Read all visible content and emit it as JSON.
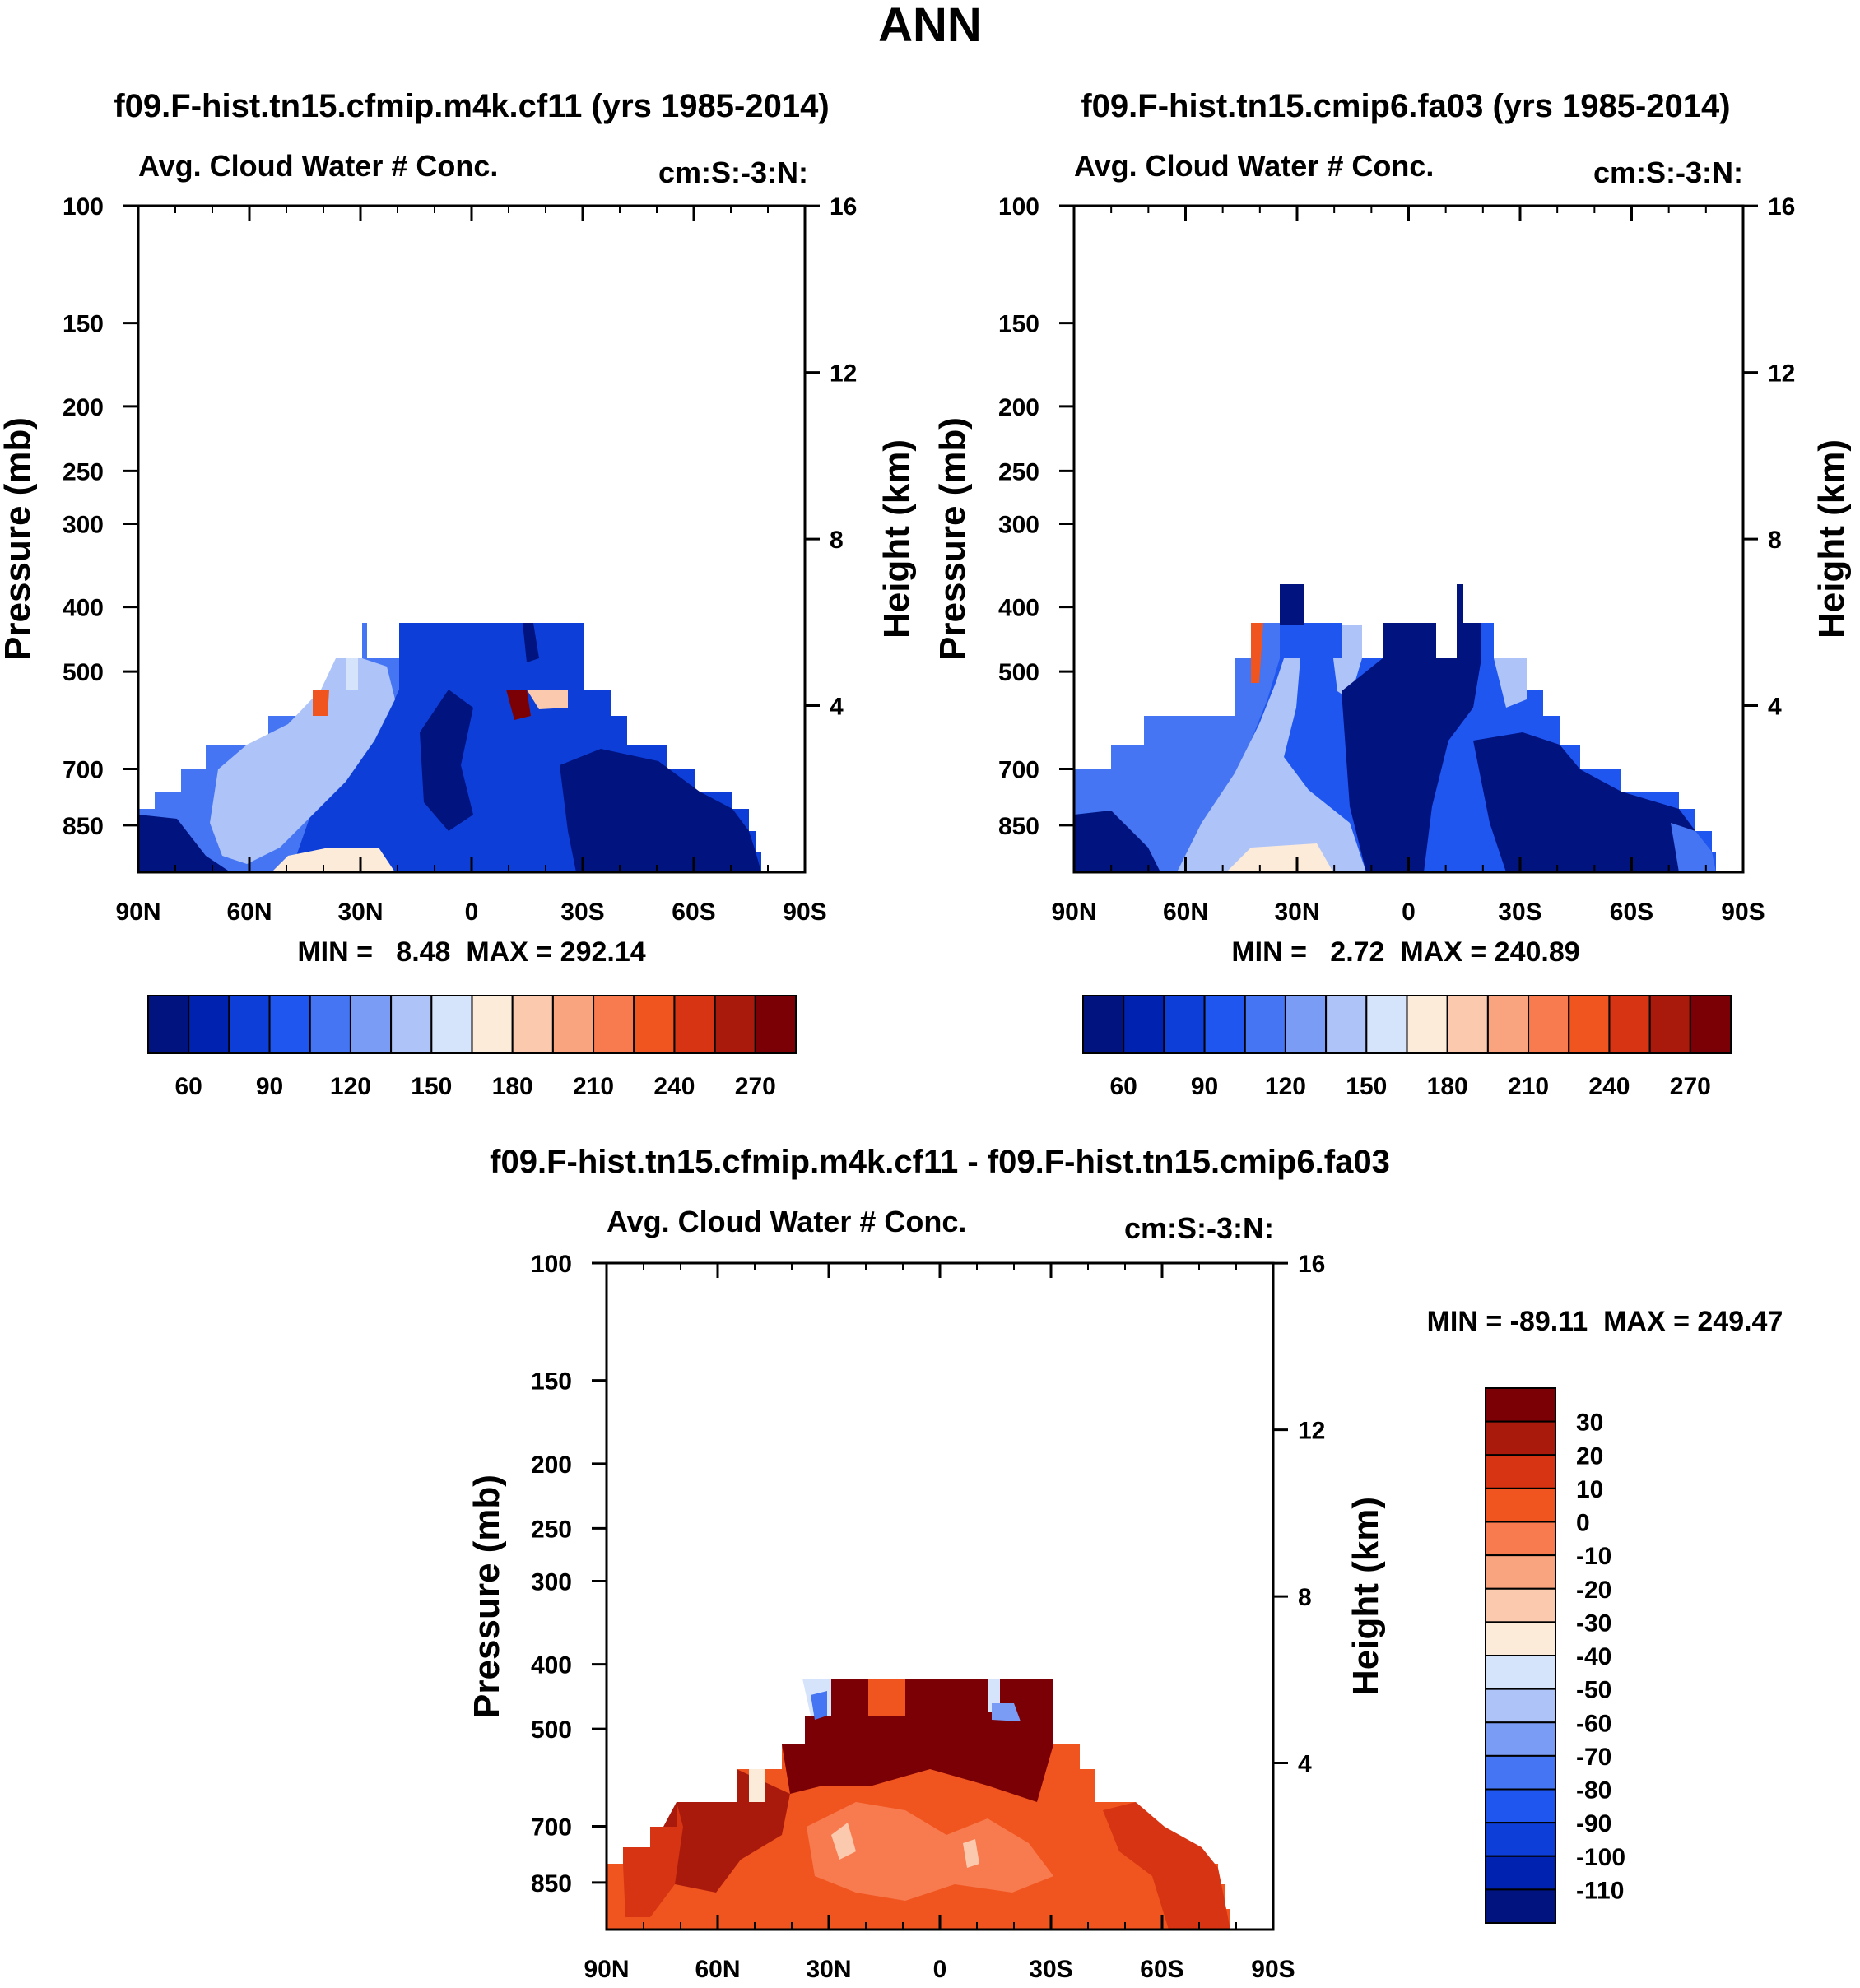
{
  "figure_title": "ANN",
  "chart_data": [
    {
      "type": "heatmap",
      "panel": "top-left",
      "title": "f09.F-hist.tn15.cfmip.m4k.cf11 (yrs 1985-2014)",
      "subtitle_left": "Avg. Cloud Water # Conc.",
      "subtitle_right": "cm:S:-3:N:",
      "ylabel": "Pressure (mb)",
      "y2label": "Height (km)",
      "x_ticks": [
        "90N",
        "60N",
        "30N",
        "0",
        "30S",
        "60S",
        "90S"
      ],
      "y_ticks": [
        "100",
        "150",
        "200",
        "250",
        "300",
        "400",
        "500",
        "700",
        "850"
      ],
      "y2_ticks": [
        "16",
        "12",
        "8",
        "4"
      ],
      "stats": "MIN =   8.48  MAX = 292.14",
      "colorbar_labels": [
        "60",
        "90",
        "120",
        "150",
        "180",
        "210",
        "240",
        "270"
      ],
      "ylim": [
        1000,
        100
      ]
    },
    {
      "type": "heatmap",
      "panel": "top-right",
      "title": "f09.F-hist.tn15.cmip6.fa03 (yrs 1985-2014)",
      "subtitle_left": "Avg. Cloud Water # Conc.",
      "subtitle_right": "cm:S:-3:N:",
      "ylabel": "Pressure (mb)",
      "y2label": "Height (km)",
      "x_ticks": [
        "90N",
        "60N",
        "30N",
        "0",
        "30S",
        "60S",
        "90S"
      ],
      "y_ticks": [
        "100",
        "150",
        "200",
        "250",
        "300",
        "400",
        "500",
        "700",
        "850"
      ],
      "y2_ticks": [
        "16",
        "12",
        "8",
        "4"
      ],
      "stats": "MIN =   2.72  MAX = 240.89",
      "colorbar_labels": [
        "60",
        "90",
        "120",
        "150",
        "180",
        "210",
        "240",
        "270"
      ],
      "ylim": [
        1000,
        100
      ]
    },
    {
      "type": "heatmap",
      "panel": "bottom",
      "title": "f09.F-hist.tn15.cfmip.m4k.cf11 - f09.F-hist.tn15.cmip6.fa03",
      "subtitle_left": "Avg. Cloud Water # Conc.",
      "subtitle_right": "cm:S:-3:N:",
      "ylabel": "Pressure (mb)",
      "y2label": "Height (km)",
      "x_ticks": [
        "90N",
        "60N",
        "30N",
        "0",
        "30S",
        "60S",
        "90S"
      ],
      "y_ticks": [
        "100",
        "150",
        "200",
        "250",
        "300",
        "400",
        "500",
        "700",
        "850"
      ],
      "y2_ticks": [
        "16",
        "12",
        "8",
        "4"
      ],
      "stats": "MIN = -89.11  MAX = 249.47",
      "colorbar_labels": [
        "30",
        "20",
        "10",
        "0",
        "-10",
        "-20",
        "-30",
        "-40",
        "-50",
        "-60",
        "-70",
        "-80",
        "-90",
        "-100",
        "-110"
      ],
      "ylim": [
        1000,
        100
      ]
    }
  ],
  "colors": {
    "cool_warm": [
      "#00137f",
      "#0022b0",
      "#0d3fd8",
      "#1f56f0",
      "#4575f2",
      "#7b9cf5",
      "#aec4f8",
      "#d5e4fb",
      "#fdebd9",
      "#fbcaae",
      "#f9a47e",
      "#f87b4f",
      "#f0551f",
      "#d63412",
      "#a91a0c",
      "#7b0005"
    ],
    "diff_top_to_bottom": [
      "#7b0005",
      "#a91a0c",
      "#d63412",
      "#f0551f",
      "#f87b4f",
      "#f9a47e",
      "#fbcaae",
      "#fdebd9",
      "#d5e4fb",
      "#aec4f8",
      "#7b9cf5",
      "#4575f2",
      "#1f56f0",
      "#0d3fd8",
      "#0022b0",
      "#00137f"
    ]
  }
}
